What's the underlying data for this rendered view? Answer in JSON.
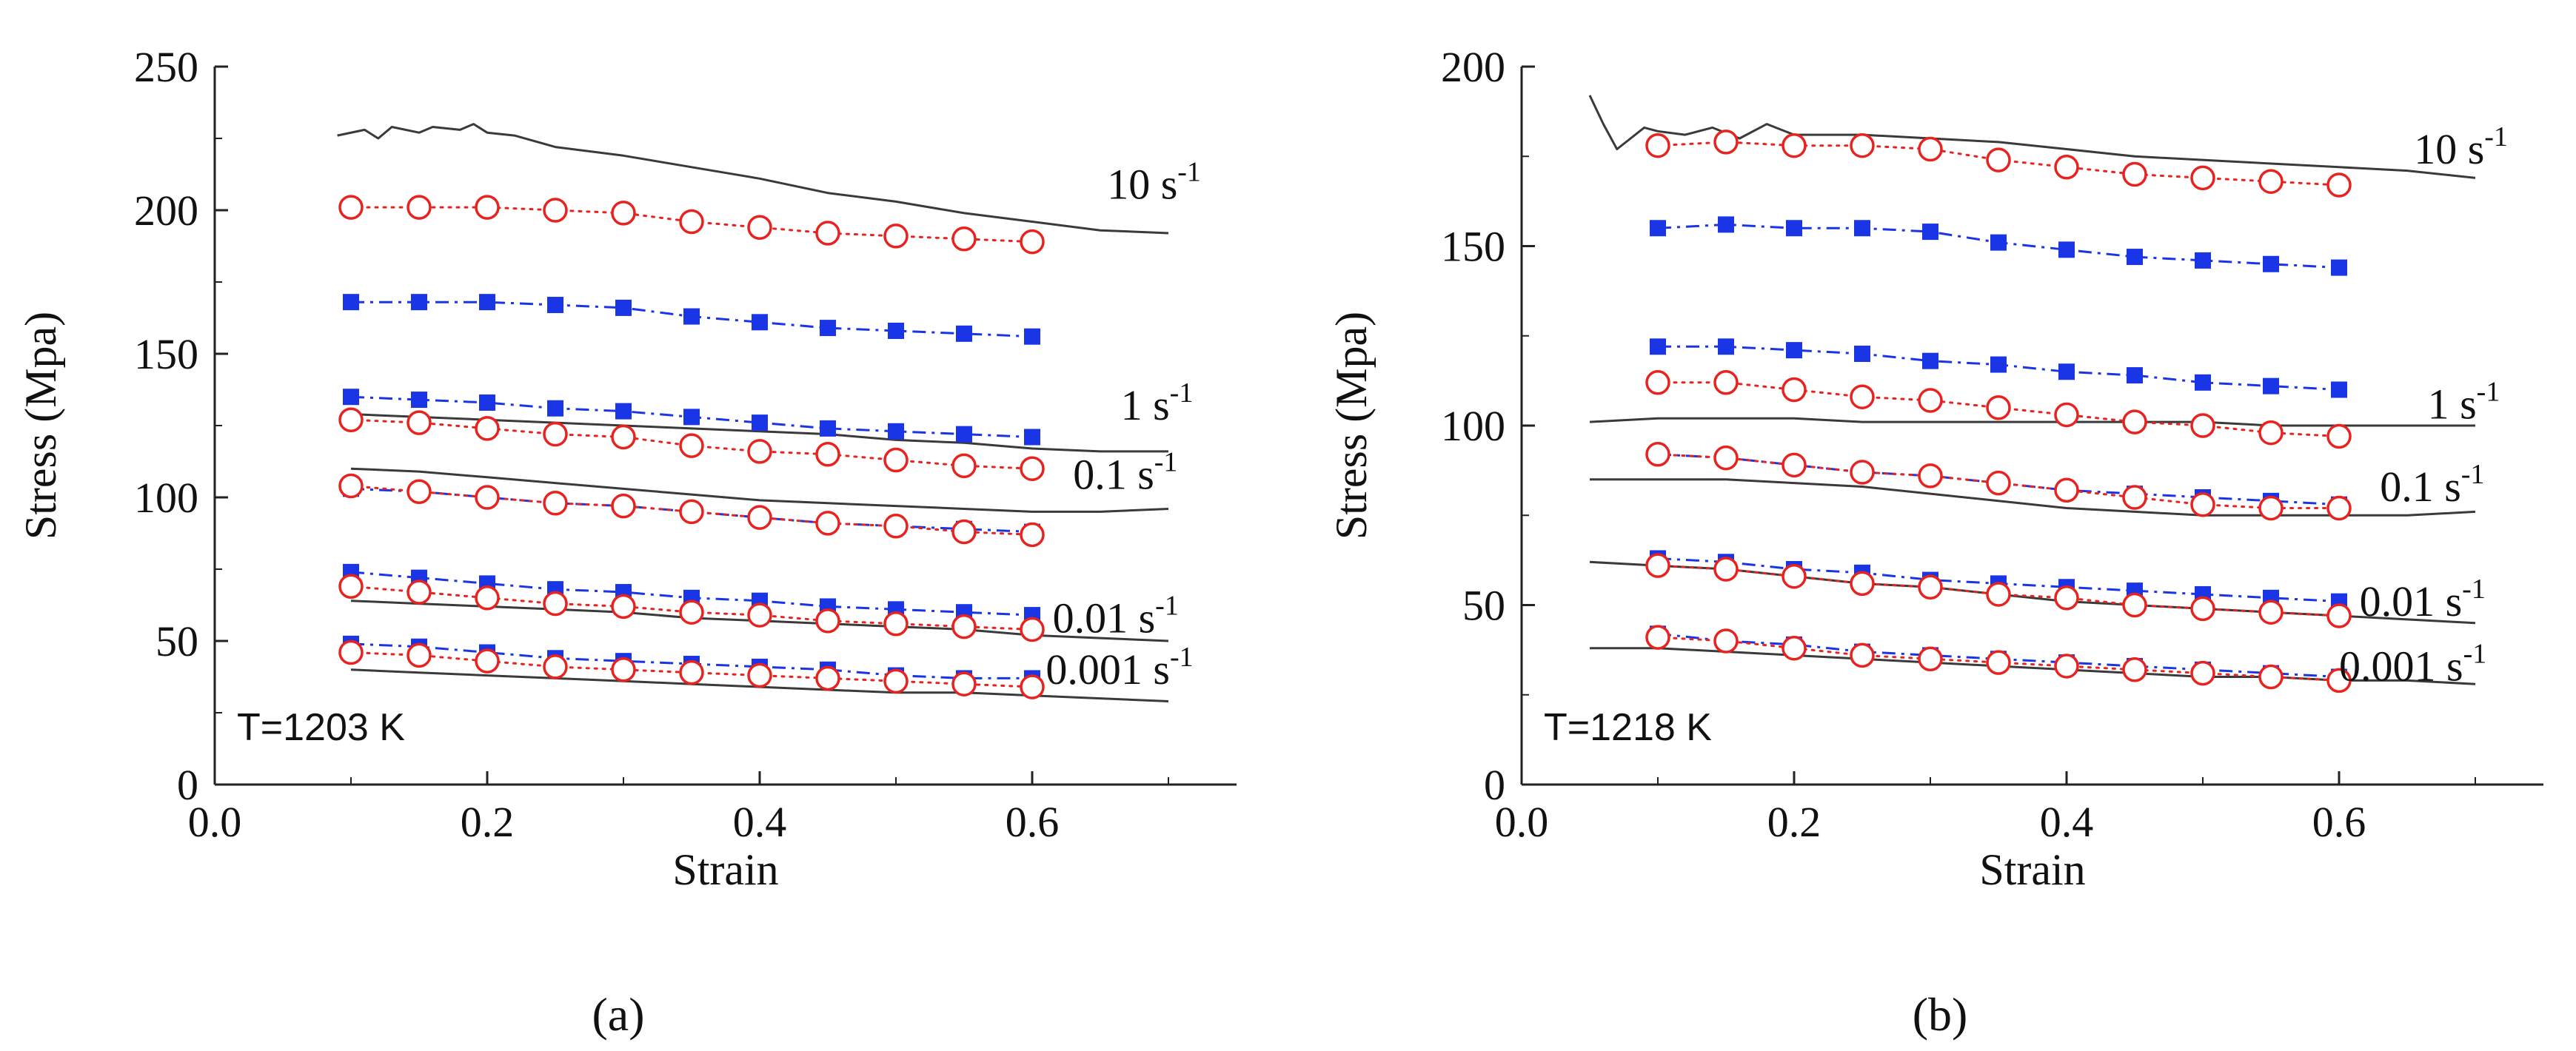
{
  "figure": {
    "captions": [
      "(a)",
      "(b)"
    ]
  },
  "chart_data": [
    {
      "type": "line",
      "panel": "a",
      "annotation": "T=1203 K",
      "xlabel": "Strain",
      "ylabel": "Stress (Mpa)",
      "xlim": [
        0,
        0.75
      ],
      "ylim": [
        0,
        250
      ],
      "xticks": [
        0.0,
        0.2,
        0.4,
        0.6
      ],
      "xtick_labels": [
        "0.0",
        "0.2",
        "0.4",
        "0.6"
      ],
      "yticks": [
        0,
        50,
        100,
        150,
        200,
        250
      ],
      "ytick_labels": [
        "0",
        "50",
        "100",
        "150",
        "200",
        "250"
      ],
      "rate_labels": [
        {
          "text": "10 s",
          "sup": "-1",
          "x": 0.655,
          "y": 204
        },
        {
          "text": "1 s",
          "sup": "-1",
          "x": 0.665,
          "y": 127
        },
        {
          "text": "0.1 s",
          "sup": "-1",
          "x": 0.63,
          "y": 103
        },
        {
          "text": "0.01 s",
          "sup": "-1",
          "x": 0.615,
          "y": 53
        },
        {
          "text": "0.001 s",
          "sup": "-1",
          "x": 0.61,
          "y": 35
        }
      ],
      "experimental": [
        {
          "rate": "10 s-1",
          "x": [
            0.09,
            0.11,
            0.12,
            0.13,
            0.15,
            0.16,
            0.18,
            0.19,
            0.2,
            0.22,
            0.25,
            0.3,
            0.35,
            0.4,
            0.45,
            0.5,
            0.55,
            0.6,
            0.65,
            0.7
          ],
          "y": [
            226,
            228,
            225,
            229,
            227,
            229,
            228,
            230,
            227,
            226,
            222,
            219,
            215,
            211,
            206,
            203,
            199,
            196,
            193,
            192
          ]
        },
        {
          "rate": "1 s-1",
          "x": [
            0.1,
            0.15,
            0.2,
            0.25,
            0.3,
            0.35,
            0.4,
            0.45,
            0.5,
            0.55,
            0.6,
            0.65,
            0.7
          ],
          "y": [
            129,
            128,
            127,
            126,
            125,
            124,
            123,
            122,
            120,
            119,
            117,
            116,
            116
          ]
        },
        {
          "rate": "0.1 s-1",
          "x": [
            0.1,
            0.15,
            0.2,
            0.25,
            0.3,
            0.35,
            0.4,
            0.45,
            0.5,
            0.55,
            0.6,
            0.65,
            0.7
          ],
          "y": [
            110,
            109,
            107,
            105,
            103,
            101,
            99,
            98,
            97,
            96,
            95,
            95,
            96
          ]
        },
        {
          "rate": "0.01 s-1",
          "x": [
            0.1,
            0.15,
            0.2,
            0.25,
            0.3,
            0.35,
            0.4,
            0.45,
            0.5,
            0.55,
            0.6,
            0.65,
            0.7
          ],
          "y": [
            64,
            63,
            62,
            61,
            60,
            58,
            57,
            56,
            55,
            54,
            52,
            51,
            50
          ]
        },
        {
          "rate": "0.001 s-1",
          "x": [
            0.1,
            0.15,
            0.2,
            0.25,
            0.3,
            0.35,
            0.4,
            0.45,
            0.5,
            0.55,
            0.6,
            0.65,
            0.7
          ],
          "y": [
            40,
            39,
            38,
            37,
            36,
            35,
            34,
            33,
            32,
            32,
            31,
            30,
            29
          ]
        }
      ],
      "predicted_squares": [
        {
          "rate": "10 s-1",
          "x": [
            0.1,
            0.15,
            0.2,
            0.25,
            0.3,
            0.35,
            0.4,
            0.45,
            0.5,
            0.55,
            0.6
          ],
          "y": [
            168,
            168,
            168,
            167,
            166,
            163,
            161,
            159,
            158,
            157,
            156
          ]
        },
        {
          "rate": "1 s-1",
          "x": [
            0.1,
            0.15,
            0.2,
            0.25,
            0.3,
            0.35,
            0.4,
            0.45,
            0.5,
            0.55,
            0.6
          ],
          "y": [
            135,
            134,
            133,
            131,
            130,
            128,
            126,
            124,
            123,
            122,
            121
          ]
        },
        {
          "rate": "0.1 s-1",
          "x": [
            0.1,
            0.15,
            0.2,
            0.25,
            0.3,
            0.35,
            0.4,
            0.45,
            0.5,
            0.55,
            0.6
          ],
          "y": [
            103,
            102,
            100,
            98,
            97,
            95,
            93,
            91,
            90,
            89,
            88
          ]
        },
        {
          "rate": "0.01 s-1",
          "x": [
            0.1,
            0.15,
            0.2,
            0.25,
            0.3,
            0.35,
            0.4,
            0.45,
            0.5,
            0.55,
            0.6
          ],
          "y": [
            74,
            72,
            70,
            68,
            67,
            65,
            64,
            62,
            61,
            60,
            59
          ]
        },
        {
          "rate": "0.001 s-1",
          "x": [
            0.1,
            0.15,
            0.2,
            0.25,
            0.3,
            0.35,
            0.4,
            0.45,
            0.5,
            0.55,
            0.6
          ],
          "y": [
            49,
            48,
            46,
            44,
            43,
            42,
            41,
            40,
            38,
            37,
            37
          ]
        }
      ],
      "predicted_circles": [
        {
          "rate": "10 s-1",
          "x": [
            0.1,
            0.15,
            0.2,
            0.25,
            0.3,
            0.35,
            0.4,
            0.45,
            0.5,
            0.55,
            0.6
          ],
          "y": [
            201,
            201,
            201,
            200,
            199,
            196,
            194,
            192,
            191,
            190,
            189
          ]
        },
        {
          "rate": "1 s-1",
          "x": [
            0.1,
            0.15,
            0.2,
            0.25,
            0.3,
            0.35,
            0.4,
            0.45,
            0.5,
            0.55,
            0.6
          ],
          "y": [
            127,
            126,
            124,
            122,
            121,
            118,
            116,
            115,
            113,
            111,
            110
          ]
        },
        {
          "rate": "0.1 s-1",
          "x": [
            0.1,
            0.15,
            0.2,
            0.25,
            0.3,
            0.35,
            0.4,
            0.45,
            0.5,
            0.55,
            0.6
          ],
          "y": [
            104,
            102,
            100,
            98,
            97,
            95,
            93,
            91,
            90,
            88,
            87
          ]
        },
        {
          "rate": "0.01 s-1",
          "x": [
            0.1,
            0.15,
            0.2,
            0.25,
            0.3,
            0.35,
            0.4,
            0.45,
            0.5,
            0.55,
            0.6
          ],
          "y": [
            69,
            67,
            65,
            63,
            62,
            60,
            59,
            57,
            56,
            55,
            54
          ]
        },
        {
          "rate": "0.001 s-1",
          "x": [
            0.1,
            0.15,
            0.2,
            0.25,
            0.3,
            0.35,
            0.4,
            0.45,
            0.5,
            0.55,
            0.6
          ],
          "y": [
            46,
            45,
            43,
            41,
            40,
            39,
            38,
            37,
            36,
            35,
            34
          ]
        }
      ]
    },
    {
      "type": "line",
      "panel": "b",
      "annotation": "T=1218 K",
      "xlabel": "Strain",
      "ylabel": "Stress (Mpa)",
      "xlim": [
        0,
        0.75
      ],
      "ylim": [
        0,
        200
      ],
      "xticks": [
        0.0,
        0.2,
        0.4,
        0.6
      ],
      "xtick_labels": [
        "0.0",
        "0.2",
        "0.4",
        "0.6"
      ],
      "yticks": [
        0,
        50,
        100,
        150,
        200
      ],
      "ytick_labels": [
        "0",
        "50",
        "100",
        "150",
        "200"
      ],
      "rate_labels": [
        {
          "text": "10 s",
          "sup": "-1",
          "x": 0.655,
          "y": 173
        },
        {
          "text": "1 s",
          "sup": "-1",
          "x": 0.665,
          "y": 102
        },
        {
          "text": "0.1 s",
          "sup": "-1",
          "x": 0.63,
          "y": 79
        },
        {
          "text": "0.01 s",
          "sup": "-1",
          "x": 0.615,
          "y": 47
        },
        {
          "text": "0.001 s",
          "sup": "-1",
          "x": 0.6,
          "y": 29
        }
      ],
      "experimental": [
        {
          "rate": "10 s-1",
          "x": [
            0.05,
            0.06,
            0.07,
            0.08,
            0.09,
            0.1,
            0.12,
            0.14,
            0.16,
            0.18,
            0.2,
            0.25,
            0.3,
            0.35,
            0.4,
            0.45,
            0.5,
            0.55,
            0.6,
            0.65,
            0.7
          ],
          "y": [
            192,
            184,
            177,
            180,
            183,
            182,
            181,
            183,
            180,
            184,
            181,
            181,
            180,
            179,
            177,
            175,
            174,
            173,
            172,
            171,
            169
          ]
        },
        {
          "rate": "1 s-1",
          "x": [
            0.05,
            0.1,
            0.15,
            0.2,
            0.25,
            0.3,
            0.35,
            0.4,
            0.45,
            0.5,
            0.55,
            0.6,
            0.65,
            0.7
          ],
          "y": [
            101,
            102,
            102,
            102,
            101,
            101,
            101,
            101,
            101,
            101,
            100,
            100,
            100,
            100
          ]
        },
        {
          "rate": "0.1 s-1",
          "x": [
            0.05,
            0.1,
            0.15,
            0.2,
            0.25,
            0.3,
            0.35,
            0.4,
            0.45,
            0.5,
            0.55,
            0.6,
            0.65,
            0.7
          ],
          "y": [
            85,
            85,
            85,
            84,
            83,
            81,
            79,
            77,
            76,
            75,
            75,
            75,
            75,
            76
          ]
        },
        {
          "rate": "0.01 s-1",
          "x": [
            0.05,
            0.1,
            0.15,
            0.2,
            0.25,
            0.3,
            0.35,
            0.4,
            0.45,
            0.5,
            0.55,
            0.6,
            0.65,
            0.7
          ],
          "y": [
            62,
            61,
            60,
            58,
            56,
            55,
            53,
            51,
            50,
            49,
            48,
            47,
            46,
            45
          ]
        },
        {
          "rate": "0.001 s-1",
          "x": [
            0.05,
            0.1,
            0.15,
            0.2,
            0.25,
            0.3,
            0.35,
            0.4,
            0.45,
            0.5,
            0.55,
            0.6,
            0.65,
            0.7
          ],
          "y": [
            38,
            38,
            37,
            36,
            35,
            34,
            33,
            32,
            31,
            30,
            30,
            29,
            29,
            28
          ]
        }
      ],
      "predicted_squares": [
        {
          "rate": "10 s-1",
          "x": [
            0.1,
            0.15,
            0.2,
            0.25,
            0.3,
            0.35,
            0.4,
            0.45,
            0.5,
            0.55,
            0.6
          ],
          "y": [
            155,
            156,
            155,
            155,
            154,
            151,
            149,
            147,
            146,
            145,
            144
          ]
        },
        {
          "rate": "1 s-1",
          "x": [
            0.1,
            0.15,
            0.2,
            0.25,
            0.3,
            0.35,
            0.4,
            0.45,
            0.5,
            0.55,
            0.6
          ],
          "y": [
            122,
            122,
            121,
            120,
            118,
            117,
            115,
            114,
            112,
            111,
            110
          ]
        },
        {
          "rate": "0.1 s-1",
          "x": [
            0.1,
            0.15,
            0.2,
            0.25,
            0.3,
            0.35,
            0.4,
            0.45,
            0.5,
            0.55,
            0.6
          ],
          "y": [
            92,
            91,
            89,
            87,
            86,
            84,
            82,
            81,
            80,
            79,
            78
          ]
        },
        {
          "rate": "0.01 s-1",
          "x": [
            0.1,
            0.15,
            0.2,
            0.25,
            0.3,
            0.35,
            0.4,
            0.45,
            0.5,
            0.55,
            0.6
          ],
          "y": [
            63,
            62,
            60,
            59,
            57,
            56,
            55,
            54,
            53,
            52,
            51
          ]
        },
        {
          "rate": "0.001 s-1",
          "x": [
            0.1,
            0.15,
            0.2,
            0.25,
            0.3,
            0.35,
            0.4,
            0.45,
            0.5,
            0.55,
            0.6
          ],
          "y": [
            42,
            40,
            39,
            37,
            36,
            35,
            34,
            33,
            32,
            31,
            30
          ]
        }
      ],
      "predicted_circles": [
        {
          "rate": "10 s-1",
          "x": [
            0.1,
            0.15,
            0.2,
            0.25,
            0.3,
            0.35,
            0.4,
            0.45,
            0.5,
            0.55,
            0.6
          ],
          "y": [
            178,
            179,
            178,
            178,
            177,
            174,
            172,
            170,
            169,
            168,
            167
          ]
        },
        {
          "rate": "1 s-1",
          "x": [
            0.1,
            0.15,
            0.2,
            0.25,
            0.3,
            0.35,
            0.4,
            0.45,
            0.5,
            0.55,
            0.6
          ],
          "y": [
            112,
            112,
            110,
            108,
            107,
            105,
            103,
            101,
            100,
            98,
            97
          ]
        },
        {
          "rate": "0.1 s-1",
          "x": [
            0.1,
            0.15,
            0.2,
            0.25,
            0.3,
            0.35,
            0.4,
            0.45,
            0.5,
            0.55,
            0.6
          ],
          "y": [
            92,
            91,
            89,
            87,
            86,
            84,
            82,
            80,
            78,
            77,
            77
          ]
        },
        {
          "rate": "0.01 s-1",
          "x": [
            0.1,
            0.15,
            0.2,
            0.25,
            0.3,
            0.35,
            0.4,
            0.45,
            0.5,
            0.55,
            0.6
          ],
          "y": [
            61,
            60,
            58,
            56,
            55,
            53,
            52,
            50,
            49,
            48,
            47
          ]
        },
        {
          "rate": "0.001 s-1",
          "x": [
            0.1,
            0.15,
            0.2,
            0.25,
            0.3,
            0.35,
            0.4,
            0.45,
            0.5,
            0.55,
            0.6
          ],
          "y": [
            41,
            40,
            38,
            36,
            35,
            34,
            33,
            32,
            31,
            30,
            29
          ]
        }
      ]
    }
  ]
}
